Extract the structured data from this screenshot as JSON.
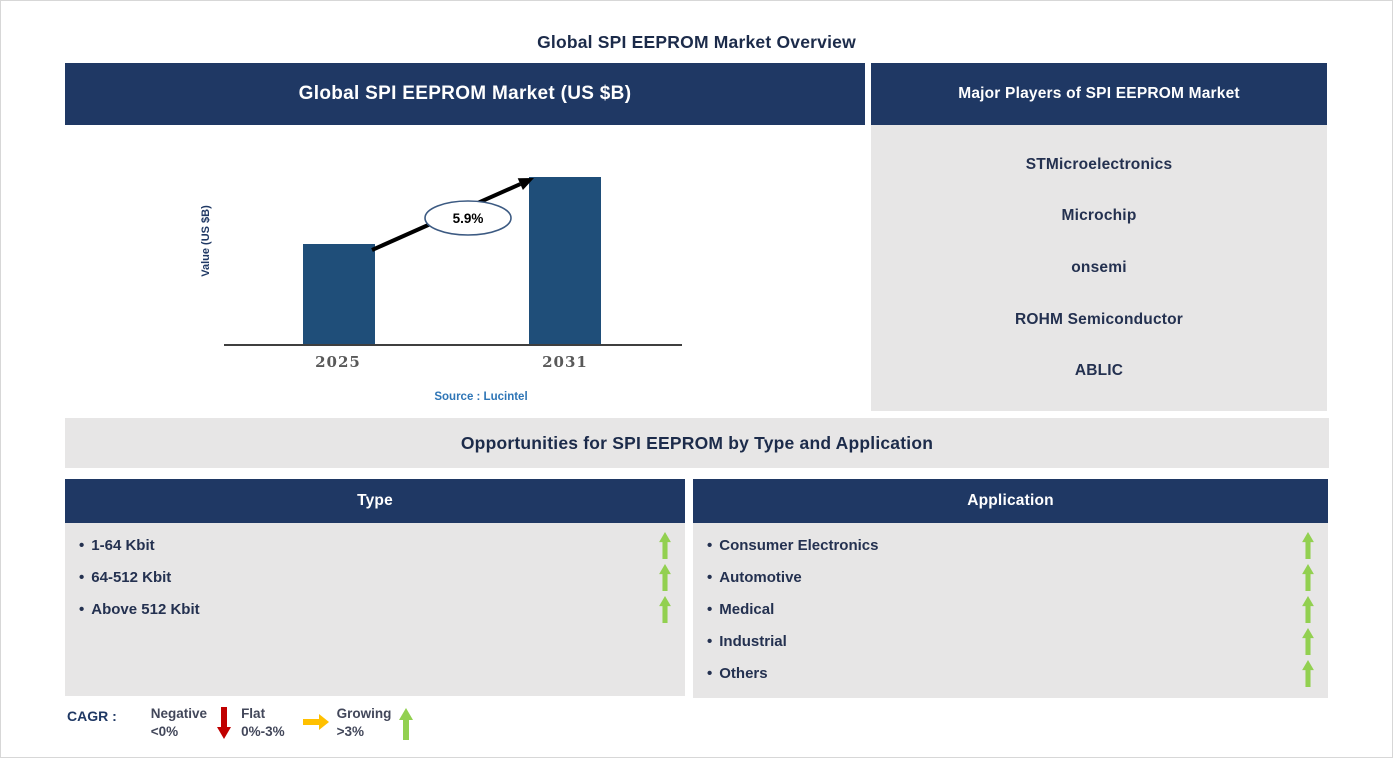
{
  "page": {
    "title": "Global SPI EEPROM Market Overview"
  },
  "ui": {
    "bullet": "•"
  },
  "chart_data": {
    "type": "bar",
    "title": "Global SPI EEPROM Market (US $B)",
    "categories": [
      "2025",
      "2031"
    ],
    "values": [
      0.6,
      1.0
    ],
    "units": "relative bar heights (y-axis unlabeled)",
    "ylabel": "Value (US $B)",
    "xlabel": "",
    "annotation": "5.9%",
    "annotation_meaning": "CAGR 2025-2031",
    "source": "Source : Lucintel",
    "grid": false,
    "legend": false,
    "bar_color": "#1F4E79"
  },
  "players_panel": {
    "header": "Major Players of SPI EEPROM Market",
    "players": [
      "STMicroelectronics",
      "Microchip",
      "onsemi",
      "ROHM Semiconductor",
      "ABLIC"
    ]
  },
  "opportunities": {
    "header": "Opportunities for SPI EEPROM by Type and Application"
  },
  "type_panel": {
    "header": "Type",
    "items": [
      {
        "label": "1-64 Kbit",
        "trend": "growing"
      },
      {
        "label": "64-512 Kbit",
        "trend": "growing"
      },
      {
        "label": "Above 512 Kbit",
        "trend": "growing"
      }
    ]
  },
  "application_panel": {
    "header": "Application",
    "items": [
      {
        "label": "Consumer Electronics",
        "trend": "growing"
      },
      {
        "label": "Automotive",
        "trend": "growing"
      },
      {
        "label": "Medical",
        "trend": "growing"
      },
      {
        "label": "Industrial",
        "trend": "growing"
      },
      {
        "label": "Others",
        "trend": "growing"
      }
    ]
  },
  "legend": {
    "label": "CAGR :",
    "entries": [
      {
        "name": "Negative",
        "range": "<0%",
        "arrow": "down",
        "color": "#C00000"
      },
      {
        "name": "Flat",
        "range": "0%-3%",
        "arrow": "right",
        "color": "#FFC000"
      },
      {
        "name": "Growing",
        "range": ">3%",
        "arrow": "up",
        "color": "#92D050"
      }
    ]
  },
  "colors": {
    "navy": "#1F3864",
    "panel": "#E7E6E6",
    "bar": "#1F4E79",
    "green": "#92D050",
    "red": "#C00000",
    "amber": "#FFC000",
    "srcblue": "#2E75B6",
    "dark": "#243150",
    "axis": "#595959"
  }
}
